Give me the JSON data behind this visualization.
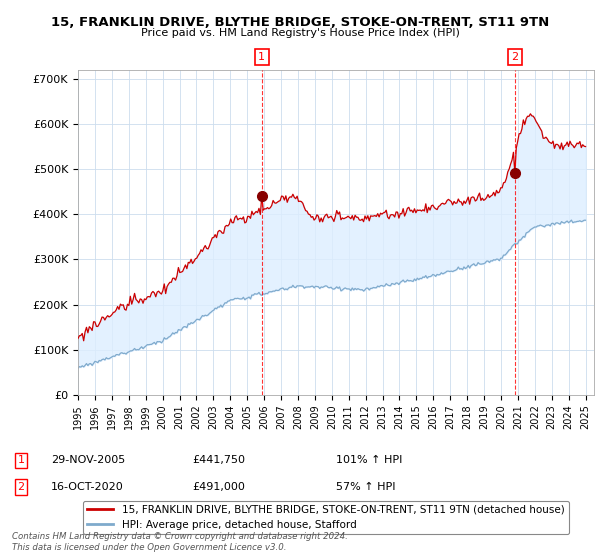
{
  "title": "15, FRANKLIN DRIVE, BLYTHE BRIDGE, STOKE-ON-TRENT, ST11 9TN",
  "subtitle": "Price paid vs. HM Land Registry's House Price Index (HPI)",
  "ylim": [
    0,
    720000
  ],
  "yticks": [
    0,
    100000,
    200000,
    300000,
    400000,
    500000,
    600000,
    700000
  ],
  "ytick_labels": [
    "£0",
    "£100K",
    "£200K",
    "£300K",
    "£400K",
    "£500K",
    "£600K",
    "£700K"
  ],
  "hpi_color": "#7faacc",
  "hpi_fill_color": "#ddeeff",
  "price_color": "#cc0000",
  "legend_price_label": "15, FRANKLIN DRIVE, BLYTHE BRIDGE, STOKE-ON-TRENT, ST11 9TN (detached house)",
  "legend_hpi_label": "HPI: Average price, detached house, Stafford",
  "annotation1_date": "29-NOV-2005",
  "annotation1_price": "£441,750",
  "annotation1_hpi": "101% ↑ HPI",
  "annotation2_date": "16-OCT-2020",
  "annotation2_price": "£491,000",
  "annotation2_hpi": "57% ↑ HPI",
  "footnote": "Contains HM Land Registry data © Crown copyright and database right 2024.\nThis data is licensed under the Open Government Licence v3.0.",
  "background_color": "#ffffff",
  "grid_color": "#ccddee"
}
